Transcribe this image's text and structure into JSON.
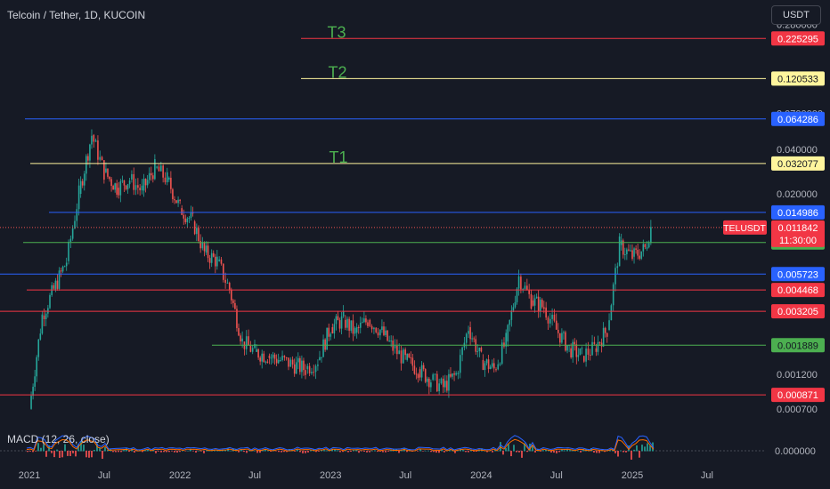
{
  "header": {
    "title": "Telcoin / Tether, 1D, KUCOIN",
    "currency": "USDT"
  },
  "colors": {
    "background": "#161a25",
    "up": "#26a69a",
    "down": "#ef5350",
    "red_line": "#f23645",
    "yellow_line": "#fff59d",
    "blue_line": "#2962ff",
    "green_line": "#4caf50",
    "annotation_green": "#4caf50"
  },
  "macd": {
    "label": "MACD (12, 26, close)",
    "zero_label": "0.000000"
  },
  "chart_data": {
    "type": "candlestick",
    "y_scale": "log",
    "ylim": [
      0.00058,
      0.3
    ],
    "x_ticks": [
      "2021",
      "Jul",
      "2022",
      "Jul",
      "2023",
      "Jul",
      "2024",
      "Jul",
      "2025",
      "Jul"
    ],
    "y_tick_labels": [
      "0.280000",
      "0.0700000",
      "0.040000",
      "0.020000",
      "0.001200",
      "0.000700"
    ],
    "y_tick_values": [
      0.28,
      0.07,
      0.04,
      0.02,
      0.0012,
      0.0007
    ],
    "current_price": {
      "symbol": "TELUSDT",
      "value": "0.011842",
      "countdown": "11:30:00"
    },
    "levels": [
      {
        "value": 0.225295,
        "label": "0.225295",
        "color": "red",
        "annotation": "T3"
      },
      {
        "value": 0.120533,
        "label": "0.120533",
        "color": "yellow",
        "annotation": "T2"
      },
      {
        "value": 0.064286,
        "label": "0.064286",
        "color": "blue"
      },
      {
        "value": 0.032077,
        "label": "0.032077",
        "color": "yellow",
        "annotation": "T1"
      },
      {
        "value": 0.014986,
        "label": "0.014986",
        "color": "blue"
      },
      {
        "value": 0.009362,
        "label": "0.009362",
        "color": "green"
      },
      {
        "value": 0.005723,
        "label": "0.005723",
        "color": "blue"
      },
      {
        "value": 0.004468,
        "label": "0.004468",
        "color": "red"
      },
      {
        "value": 0.003205,
        "label": "0.003205",
        "color": "red"
      },
      {
        "value": 0.001889,
        "label": "0.001889",
        "color": "green"
      },
      {
        "value": 0.000871,
        "label": "0.000871",
        "color": "red"
      }
    ],
    "price_path": [
      [
        "2021-01",
        0.0007
      ],
      [
        "2021-02",
        0.003
      ],
      [
        "2021-03",
        0.0045
      ],
      [
        "2021-04",
        0.007
      ],
      [
        "2021-05",
        0.02
      ],
      [
        "2021-06",
        0.05
      ],
      [
        "2021-07",
        0.028
      ],
      [
        "2021-08",
        0.022
      ],
      [
        "2021-09",
        0.025
      ],
      [
        "2021-10",
        0.021
      ],
      [
        "2021-11",
        0.03
      ],
      [
        "2021-12",
        0.025
      ],
      [
        "2022-01",
        0.016
      ],
      [
        "2022-02",
        0.013
      ],
      [
        "2022-03",
        0.008
      ],
      [
        "2022-04",
        0.007
      ],
      [
        "2022-05",
        0.0045
      ],
      [
        "2022-06",
        0.002
      ],
      [
        "2022-07",
        0.0017
      ],
      [
        "2022-08",
        0.0016
      ],
      [
        "2022-09",
        0.0015
      ],
      [
        "2022-10",
        0.0014
      ],
      [
        "2022-11",
        0.0013
      ],
      [
        "2022-12",
        0.0015
      ],
      [
        "2023-01",
        0.0025
      ],
      [
        "2023-02",
        0.0028
      ],
      [
        "2023-03",
        0.0023
      ],
      [
        "2023-04",
        0.0028
      ],
      [
        "2023-05",
        0.0024
      ],
      [
        "2023-06",
        0.0018
      ],
      [
        "2023-07",
        0.0015
      ],
      [
        "2023-08",
        0.0013
      ],
      [
        "2023-09",
        0.0011
      ],
      [
        "2023-10",
        0.00098
      ],
      [
        "2023-11",
        0.0012
      ],
      [
        "2023-12",
        0.0025
      ],
      [
        "2024-01",
        0.0015
      ],
      [
        "2024-02",
        0.0013
      ],
      [
        "2024-03",
        0.002
      ],
      [
        "2024-04",
        0.0055
      ],
      [
        "2024-05",
        0.0038
      ],
      [
        "2024-06",
        0.0034
      ],
      [
        "2024-07",
        0.0024
      ],
      [
        "2024-08",
        0.0018
      ],
      [
        "2024-09",
        0.0016
      ],
      [
        "2024-10",
        0.0018
      ],
      [
        "2024-11",
        0.0024
      ],
      [
        "2024-12",
        0.009
      ],
      [
        "2025-01",
        0.0075
      ],
      [
        "2025-02",
        0.0085
      ],
      [
        "2025-02-15",
        0.011842
      ]
    ]
  }
}
